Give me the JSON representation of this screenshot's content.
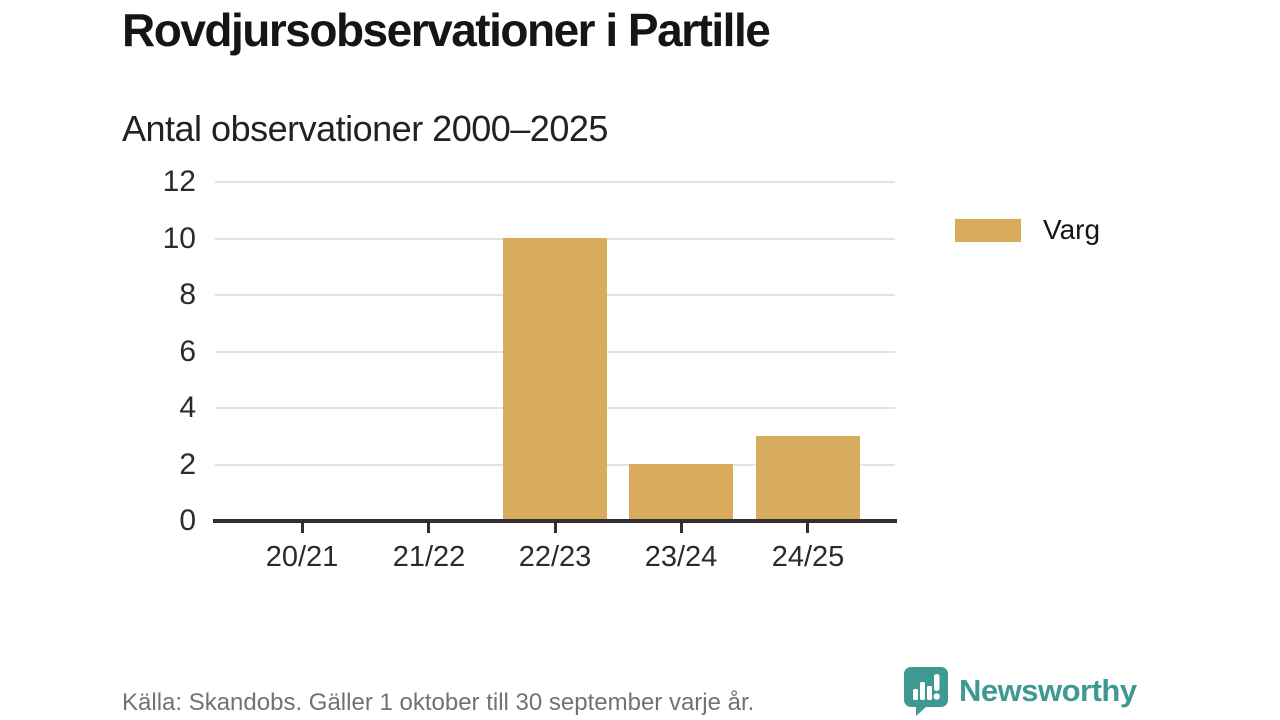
{
  "chart_data": {
    "type": "bar",
    "title": "Rovdjursobservationer i Partille",
    "subtitle": "Antal observationer 2000–2025",
    "categories": [
      "20/21",
      "21/22",
      "22/23",
      "23/24",
      "24/25"
    ],
    "series": [
      {
        "name": "Varg",
        "color": "#d9ac5d",
        "values": [
          0,
          0,
          10,
          2,
          3
        ]
      }
    ],
    "xlabel": "",
    "ylabel": "",
    "ylim": [
      0,
      12
    ],
    "yticks": [
      0,
      2,
      4,
      6,
      8,
      10,
      12
    ],
    "grid": true,
    "legend_position": "right"
  },
  "legend": {
    "items": [
      {
        "label": "Varg",
        "color": "#d9ac5d"
      }
    ]
  },
  "footer": {
    "source": "Källa: Skandobs. Gäller 1 oktober till 30 september varje år.",
    "brand": "Newsworthy"
  },
  "colors": {
    "bar": "#d9ac5d",
    "axis": "#2f2f2f",
    "gridline": "#e3e3e3",
    "brand": "#3e9a91"
  }
}
